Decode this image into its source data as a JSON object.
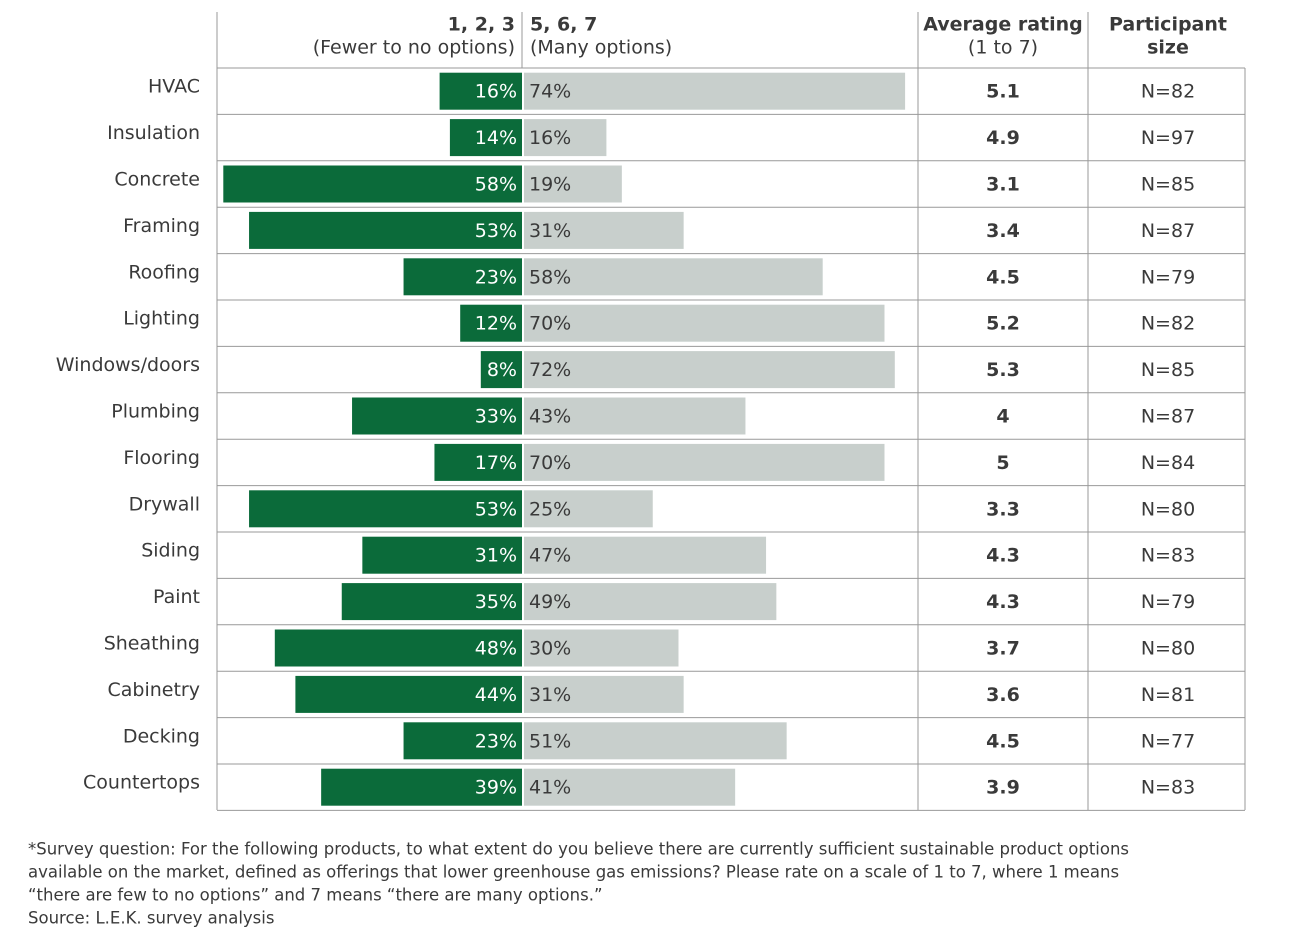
{
  "chart_data": {
    "type": "diverging_bar",
    "categories": [
      "HVAC",
      "Insulation",
      "Concrete",
      "Framing",
      "Roofing",
      "Lighting",
      "Windows/doors",
      "Plumbing",
      "Flooring",
      "Drywall",
      "Siding",
      "Paint",
      "Sheathing",
      "Cabinetry",
      "Decking",
      "Countertops"
    ],
    "series": [
      {
        "name": "1, 2, 3",
        "note": "(Fewer to no options)",
        "color": "#0b6b3a",
        "values": [
          16,
          14,
          58,
          53,
          23,
          12,
          8,
          33,
          17,
          53,
          31,
          35,
          48,
          44,
          23,
          39
        ],
        "value_labels": [
          "16%",
          "14%",
          "58%",
          "53%",
          "23%",
          "12%",
          "8%",
          "33%",
          "17%",
          "53%",
          "31%",
          "35%",
          "48%",
          "44%",
          "23%",
          "39%"
        ]
      },
      {
        "name": "5, 6, 7",
        "note": "(Many options)",
        "color": "#c8cfcc",
        "values": [
          74,
          16,
          19,
          31,
          58,
          70,
          72,
          43,
          70,
          25,
          47,
          49,
          30,
          31,
          51,
          41
        ],
        "value_labels": [
          "74%",
          "16%",
          "19%",
          "31%",
          "58%",
          "70%",
          "72%",
          "43%",
          "70%",
          "25%",
          "47%",
          "49%",
          "30%",
          "31%",
          "51%",
          "41%"
        ]
      }
    ],
    "ratings": {
      "header": [
        "Average rating",
        "(1 to 7)"
      ],
      "values": [
        5.1,
        4.9,
        3.1,
        3.4,
        4.5,
        5.2,
        5.3,
        4,
        5,
        3.3,
        4.3,
        4.3,
        3.7,
        3.6,
        4.5,
        3.9
      ]
    },
    "sizes": {
      "header": [
        "Participant",
        "size"
      ],
      "values": [
        "N=82",
        "N=97",
        "N=85",
        "N=87",
        "N=79",
        "N=82",
        "N=85",
        "N=87",
        "N=84",
        "N=80",
        "N=83",
        "N=79",
        "N=80",
        "N=81",
        "N=77",
        "N=83"
      ]
    }
  },
  "footnote": [
    "*Survey question: For the following products, to what extent do you believe there are currently sufficient sustainable product options",
    "available on the market, defined as offerings that lower greenhouse gas emissions? Please rate on a scale of 1 to 7, where 1 means",
    "“there are few to no options” and 7 means “there are many options.”"
  ],
  "source": "Source: L.E.K. survey analysis"
}
